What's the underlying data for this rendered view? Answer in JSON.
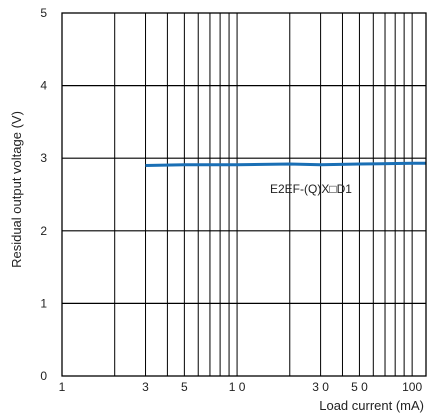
{
  "chart_data": {
    "type": "line",
    "x_scale": "log",
    "xlim": [
      1,
      120
    ],
    "ylim": [
      0,
      5
    ],
    "xlabel": "Load current (mA)",
    "ylabel": "Residual output voltage (V)",
    "x_ticks": [
      {
        "value": 1,
        "label": "1"
      },
      {
        "value": 3,
        "label": "3"
      },
      {
        "value": 5,
        "label": "5"
      },
      {
        "value": 10,
        "label": "1 0"
      },
      {
        "value": 30,
        "label": "3 0"
      },
      {
        "value": 50,
        "label": "5 0"
      },
      {
        "value": 100,
        "label": "100"
      }
    ],
    "y_ticks": [
      {
        "value": 0,
        "label": "0"
      },
      {
        "value": 1,
        "label": "1"
      },
      {
        "value": 2,
        "label": "2"
      },
      {
        "value": 3,
        "label": "3"
      },
      {
        "value": 4,
        "label": "4"
      },
      {
        "value": 5,
        "label": "5"
      }
    ],
    "grid": true,
    "series": [
      {
        "name": "E2EF-(Q)X□D1",
        "color": "#1a6fb5",
        "x": [
          3,
          5,
          10,
          20,
          30,
          50,
          100,
          120
        ],
        "y": [
          2.9,
          2.91,
          2.91,
          2.92,
          2.91,
          2.92,
          2.93,
          2.93
        ]
      }
    ]
  }
}
